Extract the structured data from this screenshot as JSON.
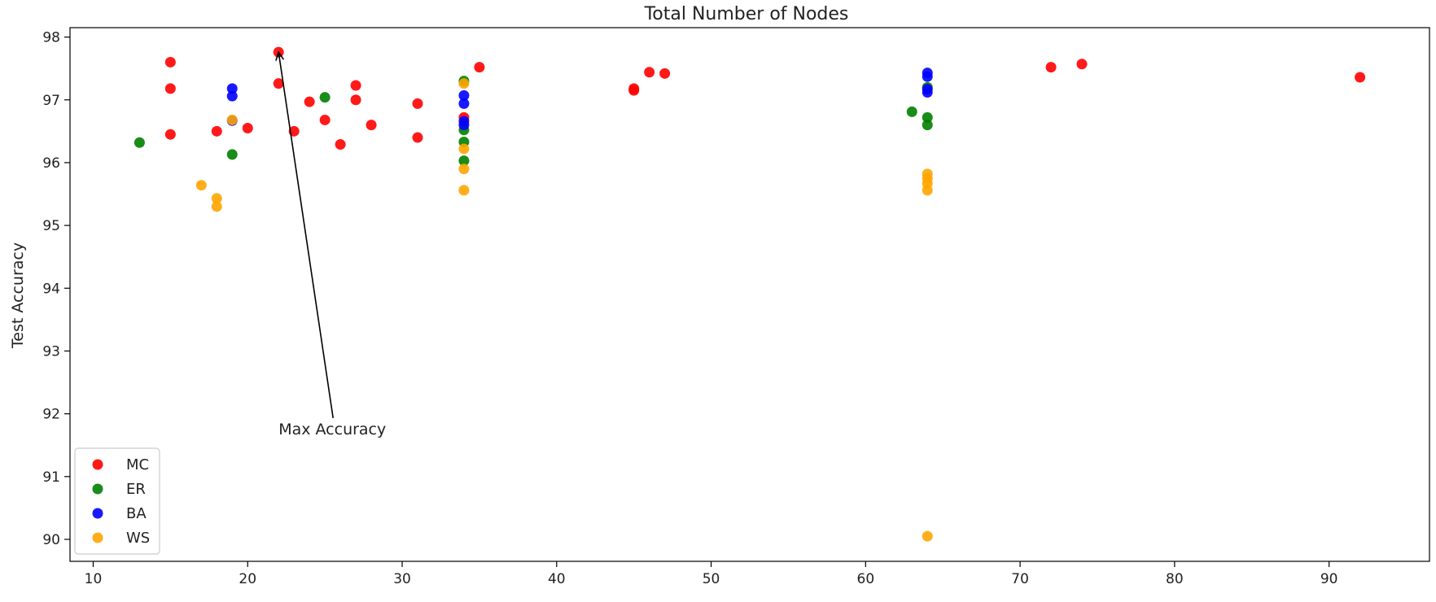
{
  "chart_data": {
    "type": "scatter",
    "title": "Total Number of Nodes",
    "xlabel": "",
    "ylabel": "Test Accuracy",
    "xlim": [
      8.5,
      96.5
    ],
    "ylim": [
      89.65,
      98.15
    ],
    "xticks": [
      "10",
      "20",
      "30",
      "40",
      "50",
      "60",
      "70",
      "80",
      "90"
    ],
    "yticks": [
      "90",
      "91",
      "92",
      "93",
      "94",
      "95",
      "96",
      "97",
      "98"
    ],
    "grid": false,
    "legend_position": "lower-left",
    "series": [
      {
        "name": "MC",
        "color": "#ff0000",
        "points": [
          [
            15,
            97.6
          ],
          [
            15,
            97.18
          ],
          [
            15,
            96.45
          ],
          [
            18,
            96.5
          ],
          [
            20,
            96.55
          ],
          [
            22,
            97.76
          ],
          [
            22,
            97.26
          ],
          [
            23,
            96.5
          ],
          [
            24,
            96.97
          ],
          [
            25,
            96.68
          ],
          [
            26,
            96.29
          ],
          [
            27,
            97.23
          ],
          [
            27,
            97.0
          ],
          [
            28,
            96.6
          ],
          [
            31,
            96.94
          ],
          [
            31,
            96.4
          ],
          [
            34,
            96.72
          ],
          [
            35,
            97.52
          ],
          [
            45,
            97.18
          ],
          [
            45,
            97.15
          ],
          [
            46,
            97.44
          ],
          [
            47,
            97.42
          ],
          [
            72,
            97.52
          ],
          [
            74,
            97.57
          ],
          [
            92,
            97.36
          ]
        ]
      },
      {
        "name": "ER",
        "color": "#007f00",
        "points": [
          [
            13,
            96.32
          ],
          [
            19,
            96.13
          ],
          [
            25,
            97.04
          ],
          [
            34,
            97.3
          ],
          [
            34,
            96.52
          ],
          [
            34,
            96.33
          ],
          [
            34,
            96.03
          ],
          [
            63,
            96.81
          ],
          [
            64,
            96.72
          ],
          [
            64,
            96.6
          ],
          [
            64,
            97.2
          ]
        ]
      },
      {
        "name": "BA",
        "color": "#0000ff",
        "points": [
          [
            19,
            97.18
          ],
          [
            19,
            97.06
          ],
          [
            19,
            96.67
          ],
          [
            34,
            97.07
          ],
          [
            34,
            96.94
          ],
          [
            34,
            96.66
          ],
          [
            34,
            96.6
          ],
          [
            64,
            97.43
          ],
          [
            64,
            97.37
          ],
          [
            64,
            97.17
          ],
          [
            64,
            97.12
          ]
        ]
      },
      {
        "name": "WS",
        "color": "#ffa500",
        "points": [
          [
            17,
            95.64
          ],
          [
            18,
            95.43
          ],
          [
            18,
            95.3
          ],
          [
            19,
            96.68
          ],
          [
            34,
            97.26
          ],
          [
            34,
            96.22
          ],
          [
            34,
            95.9
          ],
          [
            34,
            95.56
          ],
          [
            64,
            95.82
          ],
          [
            64,
            95.75
          ],
          [
            64,
            95.67
          ],
          [
            64,
            95.56
          ],
          [
            64,
            90.05
          ]
        ]
      }
    ],
    "annotation": {
      "text": "Max Accuracy",
      "point": [
        22,
        97.76
      ],
      "text_at": [
        22.0,
        91.75
      ]
    }
  }
}
